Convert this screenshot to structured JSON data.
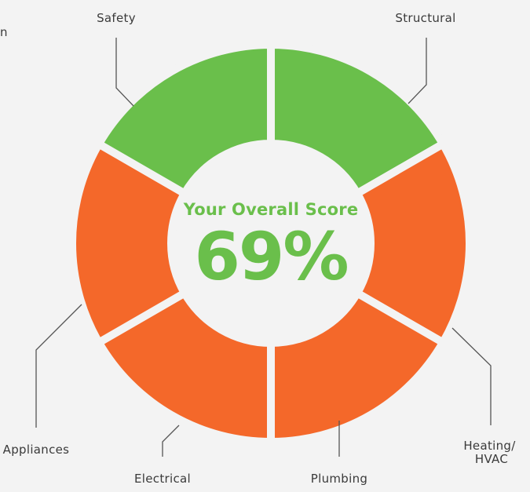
{
  "chart_data": {
    "type": "donut",
    "center_title": "Your Overall Score",
    "center_value": "69%",
    "series": [
      {
        "name": "Safety",
        "status": "pass",
        "color": "#6abf4b"
      },
      {
        "name": "Structural",
        "status": "pass",
        "color": "#6abf4b"
      },
      {
        "name": "Heating/ HVAC",
        "label_lines": [
          "Heating/",
          "HVAC"
        ],
        "status": "fail",
        "color": "#f4682a"
      },
      {
        "name": "Plumbing",
        "status": "fail",
        "color": "#f4682a"
      },
      {
        "name": "Electrical",
        "status": "fail",
        "color": "#f4682a"
      },
      {
        "name": "Appliances",
        "status": "fail",
        "color": "#f4682a"
      }
    ],
    "legend": "none",
    "grid": false
  },
  "partial_label": "n",
  "colors": {
    "pass": "#6abf4b",
    "fail": "#f4682a",
    "score_text": "#6abf4b",
    "background": "#f3f3f3"
  }
}
